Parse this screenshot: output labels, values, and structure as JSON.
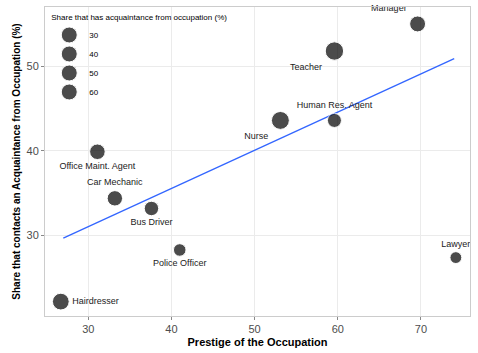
{
  "chart_data": {
    "type": "scatter",
    "x_label": "Prestige of the Occupation",
    "y_label": "Share that contacts an Acquaintance from Occupation (%)",
    "labels": [
      "Hairdresser",
      "Office Maint. Agent",
      "Car Mechanic",
      "Bus Driver",
      "Police Officer",
      "Nurse",
      "Human Res. Agent",
      "Teacher",
      "Manager",
      "Lawyer"
    ],
    "x": [
      26.7,
      31.1,
      33.2,
      37.6,
      41.0,
      53.1,
      59.6,
      59.6,
      69.6,
      74.2
    ],
    "y": [
      22.2,
      39.9,
      34.4,
      33.2,
      28.3,
      43.6,
      43.6,
      51.8,
      55.0,
      27.4
    ],
    "size": [
      50,
      43,
      42,
      37,
      28,
      57,
      35,
      60,
      45,
      25
    ],
    "size_legend": {
      "title": "Share that has acquaintance from occupation (%)",
      "values": [
        30,
        40,
        50,
        60
      ]
    },
    "color": "#000000",
    "trend": {
      "x": [
        27,
        74
      ],
      "y": [
        29.7,
        50.9
      ],
      "color": "#3366FF"
    },
    "xlim": [
      24.8,
      75.9
    ],
    "xticks": [
      30,
      40,
      50,
      60,
      70
    ],
    "ylim": [
      20.5,
      57
    ],
    "yticks": [
      30,
      40,
      50
    ],
    "grid": true,
    "legend": "top-left"
  }
}
